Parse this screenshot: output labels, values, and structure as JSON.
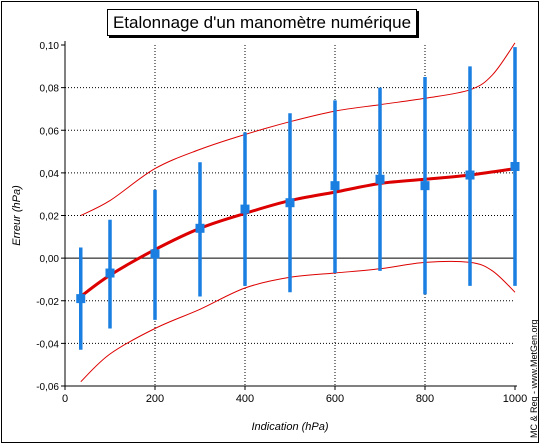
{
  "title": "Etalonnage d'un manomètre numérique",
  "credit": "MC & Reg - www.MetGen.org",
  "colors": {
    "fit": "#dd0000",
    "band": "#dd0000",
    "points": "#1a7fe0",
    "grid": "#000000"
  },
  "chart_data": {
    "type": "scatter",
    "title": "Etalonnage d'un manomètre numérique",
    "xlabel": "Indication (hPa)",
    "ylabel": "Erreur (hPa)",
    "xlim": [
      0,
      1000
    ],
    "ylim": [
      -0.06,
      0.1
    ],
    "x_ticks": [
      "0",
      "200",
      "400",
      "600",
      "800",
      "1000"
    ],
    "y_ticks": [
      "-0,06",
      "-0,04",
      "-0,02",
      "0,00",
      "0,02",
      "0,04",
      "0,06",
      "0,08",
      "0,10"
    ],
    "grid": true,
    "points": [
      {
        "x": 35,
        "y": -0.019,
        "err_low": -0.043,
        "err_high": 0.005
      },
      {
        "x": 100,
        "y": -0.007,
        "err_low": -0.033,
        "err_high": 0.018
      },
      {
        "x": 200,
        "y": 0.002,
        "err_low": -0.029,
        "err_high": 0.032
      },
      {
        "x": 300,
        "y": 0.014,
        "err_low": -0.018,
        "err_high": 0.045
      },
      {
        "x": 400,
        "y": 0.023,
        "err_low": -0.013,
        "err_high": 0.059
      },
      {
        "x": 500,
        "y": 0.026,
        "err_low": -0.016,
        "err_high": 0.068
      },
      {
        "x": 600,
        "y": 0.034,
        "err_low": -0.007,
        "err_high": 0.074
      },
      {
        "x": 700,
        "y": 0.037,
        "err_low": -0.006,
        "err_high": 0.08
      },
      {
        "x": 800,
        "y": 0.034,
        "err_low": -0.017,
        "err_high": 0.085
      },
      {
        "x": 900,
        "y": 0.039,
        "err_low": -0.013,
        "err_high": 0.09
      },
      {
        "x": 1000,
        "y": 0.043,
        "err_low": -0.013,
        "err_high": 0.099
      }
    ],
    "fit_curve": {
      "x": [
        35,
        100,
        200,
        300,
        400,
        500,
        600,
        700,
        800,
        900,
        1000
      ],
      "y": [
        -0.018,
        -0.008,
        0.004,
        0.014,
        0.021,
        0.027,
        0.031,
        0.035,
        0.037,
        0.039,
        0.042
      ]
    },
    "upper_band": {
      "x": [
        35,
        100,
        200,
        300,
        400,
        500,
        600,
        700,
        800,
        900,
        950,
        1000
      ],
      "y": [
        0.02,
        0.027,
        0.042,
        0.051,
        0.058,
        0.064,
        0.069,
        0.072,
        0.075,
        0.079,
        0.086,
        0.101
      ]
    },
    "lower_band": {
      "x": [
        35,
        100,
        200,
        300,
        400,
        500,
        600,
        700,
        800,
        900,
        950,
        1000
      ],
      "y": [
        -0.058,
        -0.045,
        -0.033,
        -0.024,
        -0.014,
        -0.009,
        -0.007,
        -0.005,
        -0.002,
        -0.002,
        -0.006,
        -0.016
      ]
    }
  }
}
